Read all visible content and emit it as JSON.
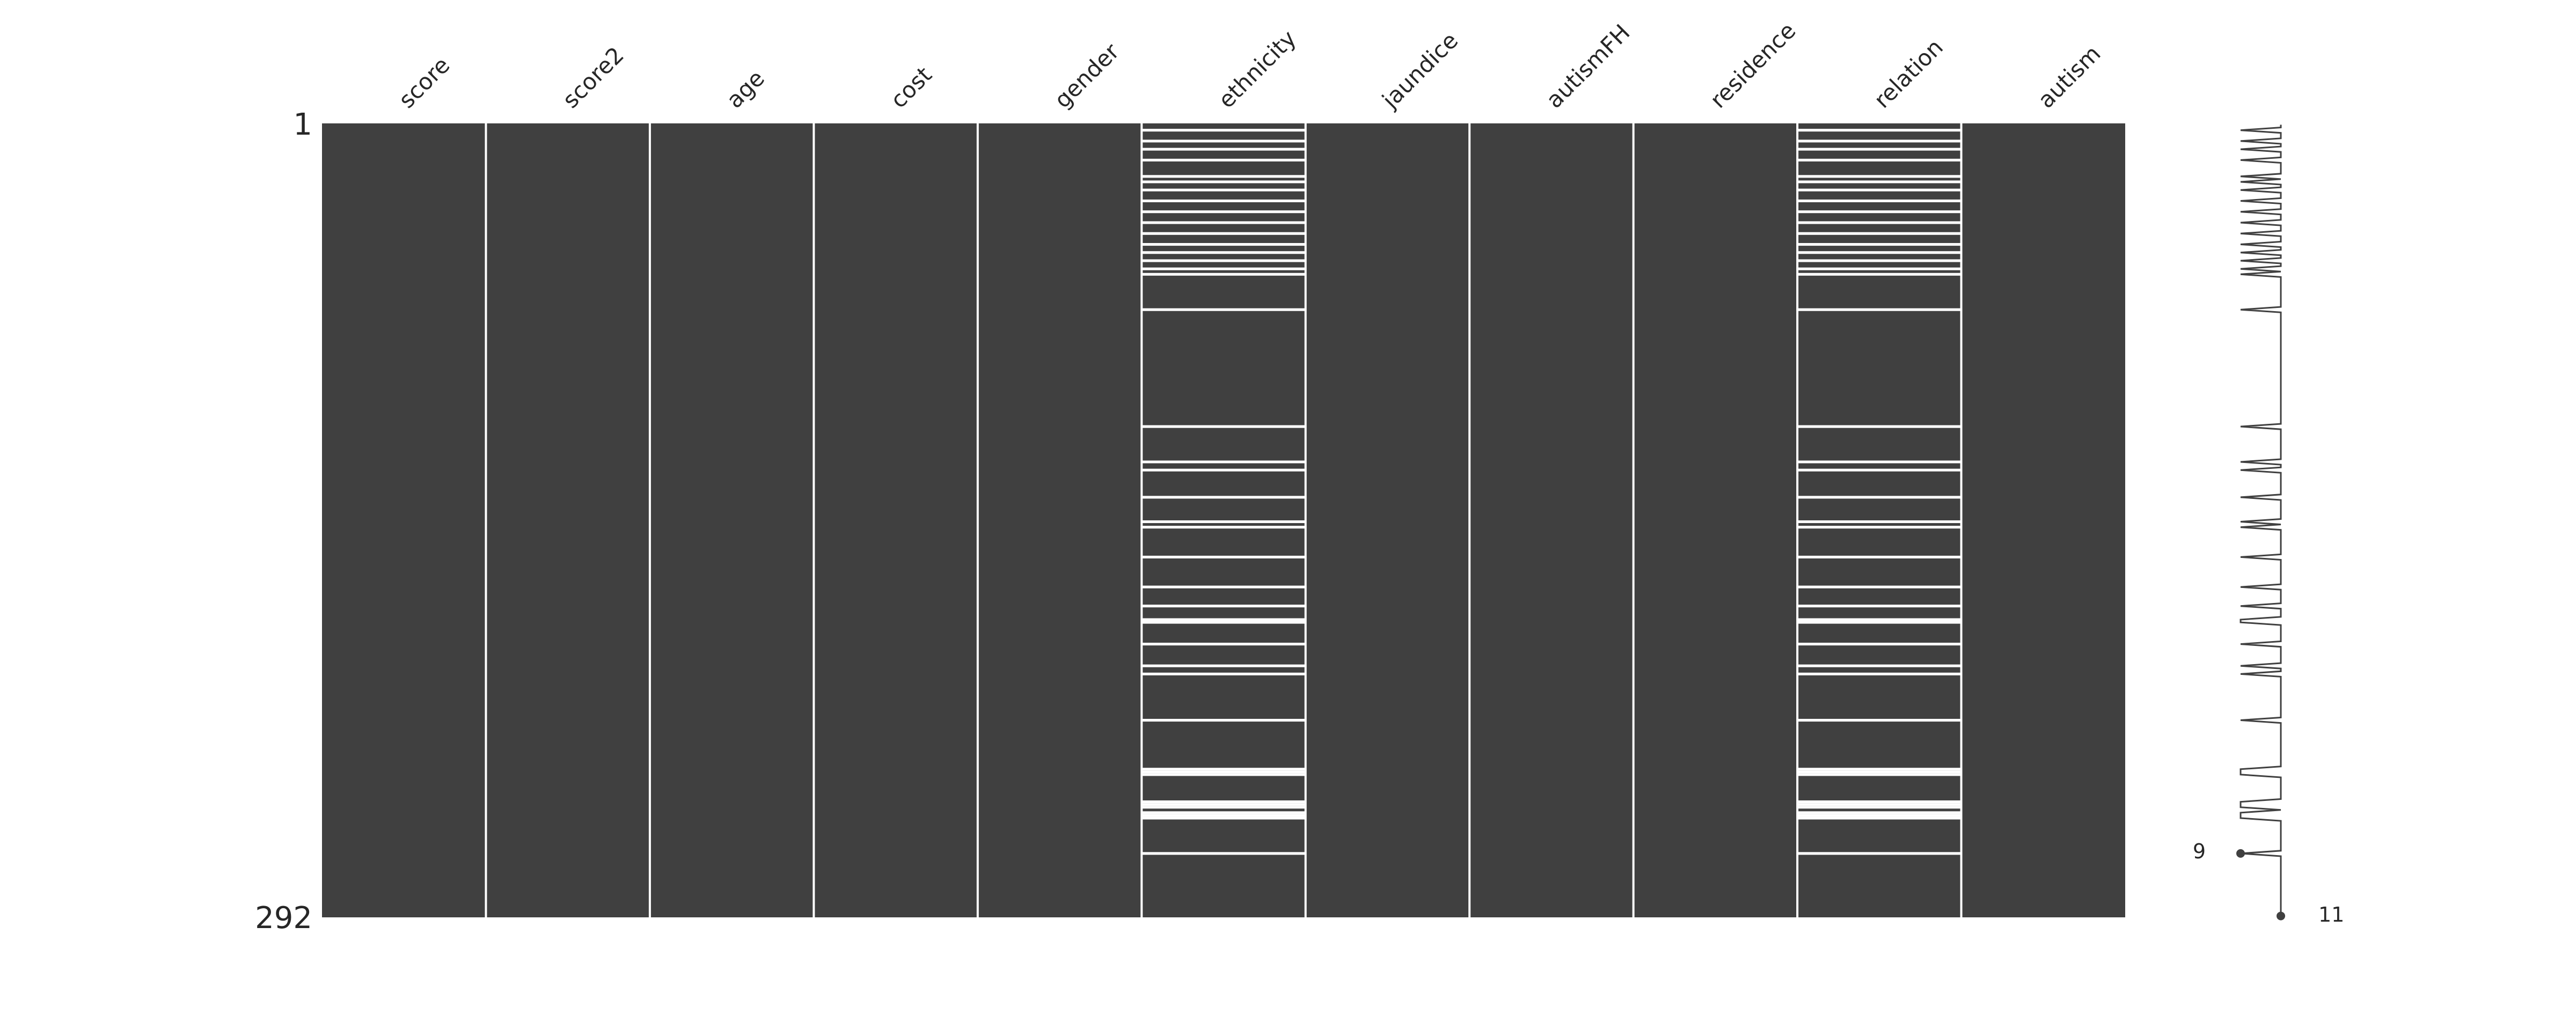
{
  "chart_data": {
    "type": "heatmap",
    "title": "",
    "columns": [
      "score",
      "score2",
      "age",
      "cost",
      "gender",
      "ethnicity",
      "jaundice",
      "autismFH",
      "residence",
      "relation",
      "autism"
    ],
    "n_rows": 292,
    "row_labels": {
      "first": "1",
      "last": "292"
    },
    "missing_rows": {
      "ethnicity": [
        3,
        7,
        10,
        14,
        20,
        22,
        25,
        29,
        33,
        37,
        41,
        45,
        48,
        51,
        54,
        56,
        69,
        112,
        125,
        128,
        138,
        147,
        149,
        160,
        171,
        178,
        183,
        184,
        192,
        200,
        203,
        220,
        238,
        239,
        240,
        250,
        251,
        252,
        254,
        255,
        256,
        269
      ],
      "relation": [
        3,
        7,
        10,
        14,
        20,
        22,
        25,
        29,
        33,
        37,
        41,
        45,
        48,
        51,
        54,
        56,
        69,
        112,
        125,
        128,
        138,
        147,
        149,
        160,
        171,
        178,
        183,
        184,
        192,
        200,
        203,
        220,
        238,
        239,
        240,
        250,
        251,
        252,
        254,
        255,
        256,
        269
      ]
    },
    "sparkline": {
      "min_label": "9",
      "max_label": "11",
      "min_value": 9,
      "max_value": 11,
      "min_row": 269,
      "max_row": 292
    },
    "colors": {
      "present": "#404040",
      "missing": "#ffffff",
      "separator": "#ffffff",
      "line": "#404040"
    }
  }
}
